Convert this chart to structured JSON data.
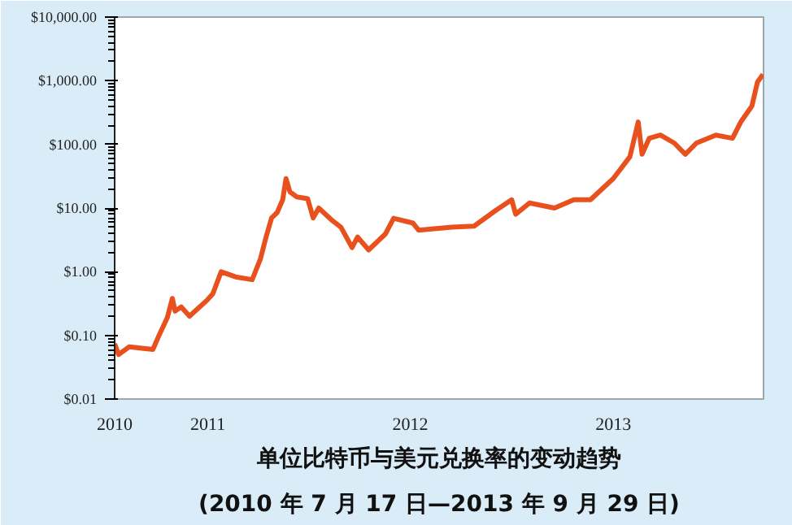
{
  "chart_data": {
    "type": "line",
    "title": "单位比特币与美元兑换率的变动趋势",
    "subtitle": "(2010 年 7 月 17 日—2013 年 9 月 29 日)",
    "x": [
      "2010-07-17",
      "2010-07-24",
      "2010-08-12",
      "2010-09-24",
      "2010-10-05",
      "2010-10-20",
      "2010-10-29",
      "2010-11-03",
      "2010-11-14",
      "2010-11-29",
      "2010-12-31",
      "2011-01-10",
      "2011-01-25",
      "2011-02-20",
      "2011-03-22",
      "2011-04-06",
      "2011-04-16",
      "2011-04-26",
      "2011-05-06",
      "2011-05-16",
      "2011-05-22",
      "2011-05-29",
      "2011-06-10",
      "2011-06-30",
      "2011-07-10",
      "2011-07-20",
      "2011-08-14",
      "2011-08-29",
      "2011-09-18",
      "2011-09-28",
      "2011-10-18",
      "2011-11-17",
      "2011-12-02",
      "2012-01-06",
      "2012-01-16",
      "2012-03-16",
      "2012-04-25",
      "2012-06-04",
      "2012-07-02",
      "2012-07-09",
      "2012-08-03",
      "2012-09-17",
      "2012-10-22",
      "2012-11-21",
      "2013-01-01",
      "2013-01-31",
      "2013-02-15",
      "2013-02-22",
      "2013-03-07",
      "2013-03-27",
      "2013-04-21",
      "2013-05-11",
      "2013-05-31",
      "2013-07-05",
      "2013-08-04",
      "2013-08-19",
      "2013-09-08",
      "2013-09-18",
      "2013-09-28"
    ],
    "series": [
      {
        "color": "#e8501e",
        "values": [
          0.074,
          0.05,
          0.066,
          0.06,
          0.1,
          0.19,
          0.38,
          0.24,
          0.28,
          0.2,
          0.36,
          0.45,
          1.0,
          0.83,
          0.75,
          1.6,
          3.5,
          7,
          8.5,
          13.5,
          29,
          18,
          15,
          14,
          7,
          10,
          6.3,
          5,
          2.4,
          3.5,
          2.2,
          3.9,
          6.9,
          5.8,
          4.5,
          5,
          5.2,
          9.3,
          13.5,
          8,
          12,
          10,
          13.5,
          13.5,
          29,
          64,
          225,
          70,
          125,
          140,
          105,
          70,
          105,
          140,
          125,
          225,
          400,
          950,
          1260
        ]
      }
    ],
    "log": true,
    "ylim": [
      0.01,
      10000
    ],
    "yticks": [
      {
        "value": 0.01,
        "label": "$0.01"
      },
      {
        "value": 0.1,
        "label": "$0.10"
      },
      {
        "value": 1,
        "label": "$1.00"
      },
      {
        "value": 10,
        "label": "$10.00"
      },
      {
        "value": 100,
        "label": "$100.00"
      },
      {
        "value": 1000,
        "label": "$1,000.00"
      },
      {
        "value": 10000,
        "label": "$10,000.00"
      }
    ],
    "xlim": [
      "2010-07-17",
      "2013-09-29"
    ],
    "xticks": [
      {
        "value": "2010-07-17",
        "label": "2010"
      },
      {
        "value": "2011-01-01",
        "label": "2011"
      },
      {
        "value": "2012-01-01",
        "label": "2012"
      },
      {
        "value": "2013-01-01",
        "label": "2013"
      }
    ],
    "grid": false
  }
}
